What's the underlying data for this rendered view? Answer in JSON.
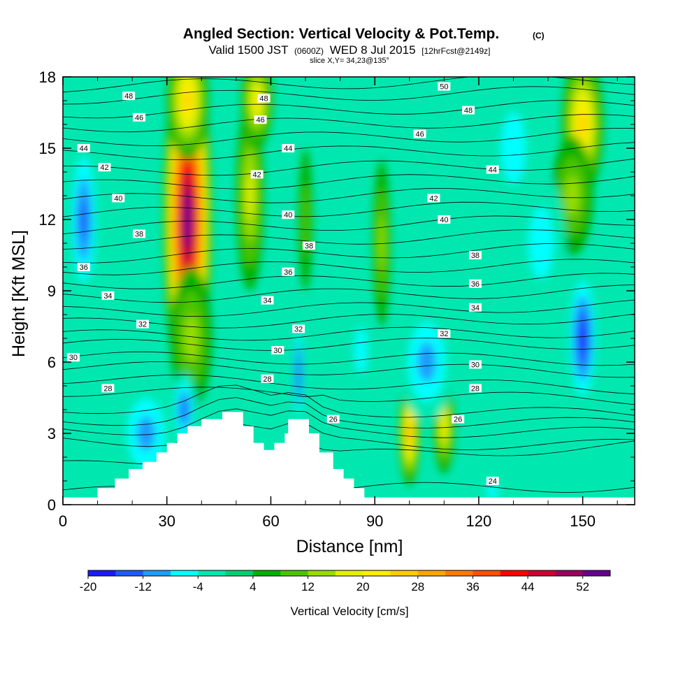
{
  "header": {
    "title_main": "Angled Section: Vertical Velocity & Pot.Temp.",
    "title_unit": "(C)",
    "valid_prefix": "Valid 1500 JST",
    "valid_utc": "(0600Z)",
    "valid_date": "WED 8 Jul 2015",
    "forecast": "[12hrFcst@2149z]",
    "slice": "slice X,Y= 34,23@135°"
  },
  "chart_data": {
    "type": "heatmap",
    "xlabel": "Distance [nm]",
    "ylabel": "Height [Kft MSL]",
    "xlim": [
      0,
      165
    ],
    "ylim": [
      0,
      18
    ],
    "xticks": [
      0,
      30,
      60,
      90,
      120,
      150
    ],
    "yticks": [
      0,
      3,
      6,
      9,
      12,
      15,
      18
    ],
    "colorbar": {
      "label": "Vertical Velocity [cm/s]",
      "tick_labels": [
        "-20",
        "-12",
        "-4",
        "4",
        "12",
        "20",
        "28",
        "36",
        "44",
        "52"
      ],
      "tick_values": [
        -20,
        -12,
        -4,
        4,
        12,
        20,
        28,
        36,
        44,
        52
      ],
      "boundaries": [
        -20,
        -16,
        -12,
        -8,
        -4,
        0,
        4,
        8,
        12,
        16,
        20,
        24,
        28,
        32,
        36,
        40,
        44,
        48,
        52,
        56
      ],
      "colors": [
        "#1a1aff",
        "#1e5bff",
        "#1e9bff",
        "#00ffff",
        "#00e8b0",
        "#00cf70",
        "#00b000",
        "#4cc400",
        "#99dd00",
        "#e6f000",
        "#ffee00",
        "#ffcc00",
        "#ffa500",
        "#ff7a00",
        "#ff4f00",
        "#ff0000",
        "#cc0030",
        "#990060",
        "#660090"
      ]
    },
    "velocity_features": [
      {
        "x": 36,
        "y": 12,
        "value": 56
      },
      {
        "x": 36,
        "y": 17,
        "value": 26
      },
      {
        "x": 37,
        "y": 7,
        "value": 14
      },
      {
        "x": 54,
        "y": 13,
        "value": 16
      },
      {
        "x": 56,
        "y": 17,
        "value": 20
      },
      {
        "x": 100,
        "y": 3,
        "value": 30
      },
      {
        "x": 110,
        "y": 3.3,
        "value": 22
      },
      {
        "x": 150,
        "y": 16,
        "value": 26
      },
      {
        "x": 147,
        "y": 13,
        "value": 12
      },
      {
        "x": 92,
        "y": 11,
        "value": 12
      },
      {
        "x": 70,
        "y": 12,
        "value": 10
      },
      {
        "x": 6,
        "y": 12,
        "value": -12
      },
      {
        "x": 105,
        "y": 6,
        "value": -8
      },
      {
        "x": 86,
        "y": 6.5,
        "value": -6
      },
      {
        "x": 24,
        "y": 3,
        "value": -8
      },
      {
        "x": 35,
        "y": 4,
        "value": -14
      },
      {
        "x": 68,
        "y": 5.5,
        "value": -16
      },
      {
        "x": 150,
        "y": 7,
        "value": -18
      },
      {
        "x": 138,
        "y": 11,
        "value": -6
      },
      {
        "x": 130,
        "y": 15,
        "value": -6
      },
      {
        "x": 124,
        "y": 0.6,
        "value": -6
      }
    ],
    "terrain_kft": [
      [
        0,
        0.3
      ],
      [
        10,
        0.3
      ],
      [
        10,
        0.7
      ],
      [
        15,
        0.7
      ],
      [
        15,
        1.1
      ],
      [
        19,
        1.1
      ],
      [
        19,
        1.5
      ],
      [
        23,
        1.5
      ],
      [
        23,
        1.8
      ],
      [
        27,
        1.8
      ],
      [
        27,
        2.2
      ],
      [
        30,
        2.2
      ],
      [
        30,
        2.6
      ],
      [
        33,
        2.6
      ],
      [
        33,
        3
      ],
      [
        36,
        3
      ],
      [
        36,
        3.3
      ],
      [
        40,
        3.3
      ],
      [
        40,
        3.6
      ],
      [
        46,
        3.6
      ],
      [
        46,
        3.9
      ],
      [
        52,
        3.9
      ],
      [
        52,
        3.3
      ],
      [
        55,
        3.3
      ],
      [
        55,
        2.6
      ],
      [
        58,
        2.6
      ],
      [
        58,
        2.3
      ],
      [
        61,
        2.3
      ],
      [
        61,
        2.6
      ],
      [
        64,
        2.6
      ],
      [
        64,
        3
      ],
      [
        65,
        3
      ],
      [
        65,
        3.6
      ],
      [
        71,
        3.6
      ],
      [
        71,
        3
      ],
      [
        74,
        3
      ],
      [
        74,
        2.2
      ],
      [
        78,
        2.2
      ],
      [
        78,
        1.5
      ],
      [
        81,
        1.5
      ],
      [
        81,
        1.1
      ],
      [
        84,
        1.1
      ],
      [
        84,
        0.7
      ],
      [
        87,
        0.7
      ],
      [
        87,
        0.3
      ],
      [
        165,
        0.3
      ]
    ],
    "isentropes": [
      {
        "theta": 24,
        "y0": 0.5,
        "y1": 0.8
      },
      {
        "theta": 26,
        "y0": 1.6,
        "y1": 2.5
      },
      {
        "theta": 26,
        "y0": 2.7,
        "y1": 2.5
      },
      {
        "theta": 26,
        "y0": 3.2,
        "y1": 3
      },
      {
        "theta": 26,
        "y0": 3.6,
        "y1": 3.4
      },
      {
        "theta": 28,
        "y0": 4.1,
        "y1": 3.8
      },
      {
        "theta": 28,
        "y0": 4.8,
        "y1": 4.4
      },
      {
        "theta": 28,
        "y0": 5.3,
        "y1": 4.9
      },
      {
        "theta": 30,
        "y0": 5.8,
        "y1": 5.6
      },
      {
        "theta": 30,
        "y0": 6.2,
        "y1": 6.1
      },
      {
        "theta": 30,
        "y0": 6.7,
        "y1": 6.8
      },
      {
        "theta": 32,
        "y0": 7.1,
        "y1": 7.3
      },
      {
        "theta": 32,
        "y0": 7.6,
        "y1": 7.9
      },
      {
        "theta": 32,
        "y0": 8.1,
        "y1": 8.4
      },
      {
        "theta": 34,
        "y0": 8.7,
        "y1": 9
      },
      {
        "theta": 34,
        "y0": 9.3,
        "y1": 9.5
      },
      {
        "theta": 36,
        "y0": 9.9,
        "y1": 10.1
      },
      {
        "theta": 36,
        "y0": 10.4,
        "y1": 10.8
      },
      {
        "theta": 38,
        "y0": 11,
        "y1": 11.4
      },
      {
        "theta": 38,
        "y0": 11.6,
        "y1": 12
      },
      {
        "theta": 40,
        "y0": 12.2,
        "y1": 12.6
      },
      {
        "theta": 40,
        "y0": 12.8,
        "y1": 13.2
      },
      {
        "theta": 42,
        "y0": 13.4,
        "y1": 13.8
      },
      {
        "theta": 42,
        "y0": 14,
        "y1": 14.4
      },
      {
        "theta": 44,
        "y0": 14.7,
        "y1": 15
      },
      {
        "theta": 44,
        "y0": 15.3,
        "y1": 15.6
      },
      {
        "theta": 46,
        "y0": 15.9,
        "y1": 16.2
      },
      {
        "theta": 46,
        "y0": 16.5,
        "y1": 16.8
      },
      {
        "theta": 48,
        "y0": 17.1,
        "y1": 17.4
      },
      {
        "theta": 48,
        "y0": 17.6,
        "y1": 17.9
      }
    ],
    "contour_labels": [
      {
        "text": "48",
        "x": 19,
        "y": 17.2
      },
      {
        "text": "46",
        "x": 22,
        "y": 16.3
      },
      {
        "text": "44",
        "x": 6,
        "y": 15
      },
      {
        "text": "42",
        "x": 12,
        "y": 14.2
      },
      {
        "text": "40",
        "x": 16,
        "y": 12.9
      },
      {
        "text": "38",
        "x": 22,
        "y": 11.4
      },
      {
        "text": "36",
        "x": 6,
        "y": 10
      },
      {
        "text": "34",
        "x": 13,
        "y": 8.8
      },
      {
        "text": "32",
        "x": 23,
        "y": 7.6
      },
      {
        "text": "30",
        "x": 3,
        "y": 6.2
      },
      {
        "text": "28",
        "x": 13,
        "y": 4.9
      },
      {
        "text": "48",
        "x": 58,
        "y": 17.1
      },
      {
        "text": "46",
        "x": 57,
        "y": 16.2
      },
      {
        "text": "44",
        "x": 65,
        "y": 15
      },
      {
        "text": "42",
        "x": 56,
        "y": 13.9
      },
      {
        "text": "40",
        "x": 65,
        "y": 12.2
      },
      {
        "text": "38",
        "x": 71,
        "y": 10.9
      },
      {
        "text": "36",
        "x": 65,
        "y": 9.8
      },
      {
        "text": "34",
        "x": 59,
        "y": 8.6
      },
      {
        "text": "32",
        "x": 68,
        "y": 7.4
      },
      {
        "text": "30",
        "x": 62,
        "y": 6.5
      },
      {
        "text": "28",
        "x": 59,
        "y": 5.3
      },
      {
        "text": "26",
        "x": 78,
        "y": 3.6
      },
      {
        "text": "50",
        "x": 110,
        "y": 17.6
      },
      {
        "text": "48",
        "x": 117,
        "y": 16.6
      },
      {
        "text": "46",
        "x": 103,
        "y": 15.6
      },
      {
        "text": "44",
        "x": 124,
        "y": 14.1
      },
      {
        "text": "42",
        "x": 107,
        "y": 12.9
      },
      {
        "text": "40",
        "x": 110,
        "y": 12
      },
      {
        "text": "38",
        "x": 119,
        "y": 10.5
      },
      {
        "text": "36",
        "x": 119,
        "y": 9.3
      },
      {
        "text": "34",
        "x": 119,
        "y": 8.3
      },
      {
        "text": "32",
        "x": 110,
        "y": 7.2
      },
      {
        "text": "30",
        "x": 119,
        "y": 5.9
      },
      {
        "text": "28",
        "x": 119,
        "y": 4.9
      },
      {
        "text": "26",
        "x": 114,
        "y": 3.6
      },
      {
        "text": "24",
        "x": 124,
        "y": 1
      }
    ]
  }
}
